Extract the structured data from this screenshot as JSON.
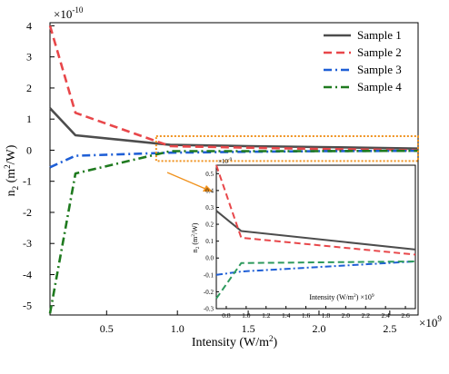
{
  "chart_data": [
    {
      "id": "main",
      "type": "line",
      "title": "",
      "xlabel": "Intensity (W/m",
      "xlabel_sup": "2",
      "xlabel_tail": ")",
      "ylabel": "n",
      "ylabel_sub": "2",
      "ylabel_tail": " (m",
      "ylabel_sup": "2",
      "ylabel_tail2": "/W)",
      "x_multiplier": "×10",
      "x_multiplier_exp": "9",
      "y_multiplier": "×10",
      "y_multiplier_exp": "-10",
      "xlim": [
        0.1,
        2.7
      ],
      "ylim": [
        -5.3,
        4.1
      ],
      "xticks": [
        0.5,
        1.0,
        1.5,
        2.0,
        2.5
      ],
      "xtick_labels": [
        "0.5",
        "1.0",
        "1.5",
        "2.0",
        "2.5"
      ],
      "yticks": [
        -5,
        -4,
        -3,
        -2,
        -1,
        0,
        1,
        2,
        3,
        4
      ],
      "ytick_labels": [
        "-5",
        "-4",
        "-3",
        "-2",
        "-1",
        "0",
        "1",
        "2",
        "3",
        "4"
      ],
      "grid": false,
      "legend_position": "top-right",
      "series": [
        {
          "name": "Sample 1",
          "color": "#4d4d4d",
          "dash": "solid",
          "x": [
            0.1,
            0.28,
            0.95,
            1.5,
            2.0,
            2.7
          ],
          "y": [
            1.35,
            0.48,
            0.17,
            0.13,
            0.1,
            0.05
          ]
        },
        {
          "name": "Sample 2",
          "color": "#e8474a",
          "dash": "dashed",
          "x": [
            0.1,
            0.28,
            0.95,
            1.5,
            2.0,
            2.7
          ],
          "y": [
            4.0,
            1.2,
            0.13,
            0.08,
            0.04,
            0.0
          ]
        },
        {
          "name": "Sample 3",
          "color": "#1f5fd6",
          "dash": "dashdot",
          "x": [
            0.1,
            0.28,
            0.95,
            1.5,
            2.0,
            2.7
          ],
          "y": [
            -0.55,
            -0.18,
            -0.08,
            -0.05,
            -0.03,
            -0.02
          ]
        },
        {
          "name": "Sample 4",
          "color": "#1f7a1f",
          "dash": "dashdot",
          "x": [
            0.1,
            0.28,
            0.95,
            1.5,
            2.0,
            2.7
          ],
          "y": [
            -5.25,
            -0.75,
            -0.03,
            -0.03,
            -0.03,
            -0.02
          ]
        }
      ]
    },
    {
      "id": "inset",
      "type": "line",
      "title": "",
      "xlabel": "Intensity (W/m",
      "xlabel_sup": "2",
      "xlabel_tail": ") ×10",
      "xlabel_exp": "9",
      "ylabel": "n",
      "ylabel_sub": "2",
      "ylabel_tail": " (m",
      "ylabel_sup": "2",
      "ylabel_tail2": "/W)",
      "y_multiplier": "×10",
      "y_multiplier_exp": "-9",
      "xlim": [
        0.7,
        2.7
      ],
      "ylim": [
        -0.3,
        0.55
      ],
      "xticks": [
        0.8,
        1.0,
        1.2,
        1.4,
        1.6,
        1.8,
        2.0,
        2.2,
        2.4,
        2.6
      ],
      "xtick_labels": [
        "0.8",
        "1.0",
        "1.2",
        "1.4",
        "1.6",
        "1.8",
        "2.0",
        "2.2",
        "2.4",
        "2.6"
      ],
      "yticks": [
        -0.3,
        -0.2,
        -0.1,
        0.0,
        0.1,
        0.2,
        0.3,
        0.4,
        0.5
      ],
      "ytick_labels": [
        "-0.3",
        "-0.2",
        "-0.1",
        "0.0",
        "0.1",
        "0.2",
        "0.3",
        "0.4",
        "0.5"
      ],
      "grid": false,
      "series": [
        {
          "color": "#4d4d4d",
          "dash": "solid",
          "x": [
            0.7,
            0.95,
            2.7
          ],
          "y": [
            0.28,
            0.16,
            0.05
          ]
        },
        {
          "color": "#e8474a",
          "dash": "dashed",
          "x": [
            0.7,
            0.95,
            2.7
          ],
          "y": [
            0.55,
            0.12,
            0.02
          ]
        },
        {
          "color": "#1f5fd6",
          "dash": "dashdot",
          "x": [
            0.7,
            0.95,
            2.7
          ],
          "y": [
            -0.1,
            -0.08,
            -0.02
          ]
        },
        {
          "color": "#2e9a5e",
          "dash": "dashed",
          "x": [
            0.7,
            0.95,
            2.7
          ],
          "y": [
            -0.24,
            -0.03,
            -0.02
          ]
        }
      ]
    }
  ],
  "highlight": {
    "color": "#f0921e",
    "x_range": [
      0.85,
      2.7
    ],
    "y_range": [
      -0.35,
      0.45
    ]
  }
}
